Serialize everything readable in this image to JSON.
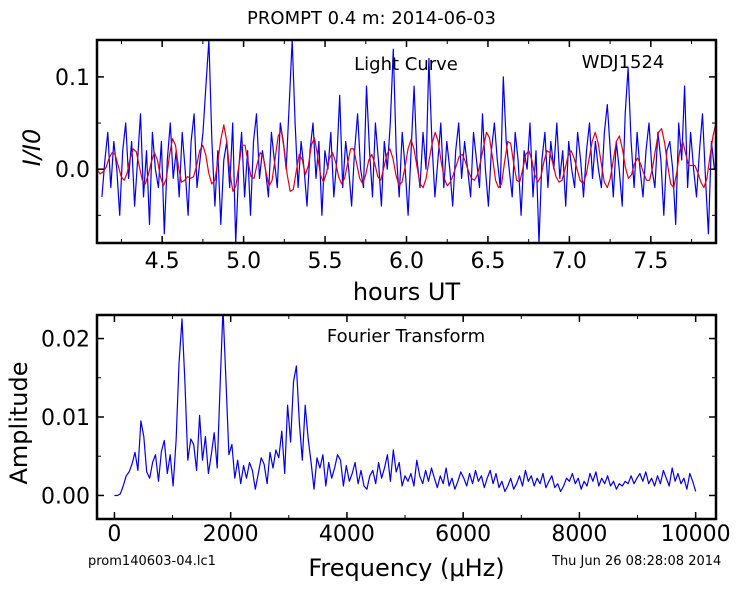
{
  "suptitle": "PROMPT 0.4 m:  2014-06-03",
  "footer": {
    "left": "prom140603-04.lc1",
    "right": "Thu Jun 26 08:28:08 2014"
  },
  "colors": {
    "data": "#0000ee",
    "model": "#e0001a",
    "axes": "#000000"
  },
  "chart_data": [
    {
      "type": "line",
      "title": "Light Curve",
      "annotation": "WDJ1524",
      "xlabel": "hours UT",
      "ylabel": "I/I0",
      "xlim": [
        4.1,
        7.9
      ],
      "ylim": [
        -0.08,
        0.14
      ],
      "xticks": [
        4.5,
        5.0,
        5.5,
        6.0,
        6.5,
        7.0,
        7.5
      ],
      "xtick_labels": [
        "4.5",
        "5.0",
        "5.5",
        "6.0",
        "6.5",
        "7.0",
        "7.5"
      ],
      "yticks": [
        0.1,
        0.0
      ],
      "ytick_labels": [
        "0.1",
        "0.0"
      ],
      "series": [
        {
          "role": "data",
          "color": "#0000ee",
          "x_start": 4.13,
          "x_end": 7.89,
          "values": [
            -0.03,
            0.01,
            0.04,
            -0.02,
            0.03,
            0.0,
            -0.05,
            0.02,
            0.05,
            -0.01,
            0.03,
            -0.04,
            0.01,
            0.06,
            -0.03,
            0.02,
            -0.06,
            0.04,
            0.0,
            -0.02,
            0.03,
            -0.07,
            0.01,
            0.05,
            -0.01,
            0.02,
            -0.03,
            0.04,
            0.0,
            -0.05,
            0.03,
            0.06,
            -0.02,
            0.01,
            0.04,
            0.09,
            0.14,
            0.03,
            -0.04,
            0.02,
            -0.06,
            0.01,
            0.03,
            -0.02,
            0.05,
            -0.08,
            0.0,
            0.04,
            -0.03,
            0.02,
            -0.05,
            0.03,
            0.06,
            -0.01,
            0.02,
            0.0,
            -0.03,
            0.04,
            0.01,
            -0.02,
            0.05,
            0.03,
            0.0,
            0.07,
            0.14,
            0.05,
            -0.02,
            0.03,
            0.0,
            -0.04,
            0.02,
            0.05,
            -0.01,
            0.03,
            -0.05,
            0.02,
            0.0,
            0.04,
            -0.03,
            0.01,
            0.08,
            -0.02,
            0.03,
            0.0,
            -0.04,
            0.02,
            0.06,
            0.0,
            -0.02,
            0.09,
            0.02,
            -0.03,
            0.05,
            0.01,
            -0.04,
            0.03,
            0.0,
            0.05,
            0.13,
            0.02,
            -0.03,
            0.04,
            0.0,
            -0.05,
            0.02,
            0.09,
            0.01,
            -0.02,
            0.04,
            0.0,
            0.12,
            0.03,
            -0.03,
            0.01,
            0.05,
            -0.02,
            0.03,
            0.0,
            -0.04,
            0.02,
            0.05,
            -0.01,
            0.03,
            0.0,
            -0.03,
            0.04,
            0.01,
            -0.02,
            0.06,
            0.0,
            -0.04,
            0.02,
            0.05,
            0.01,
            -0.02,
            0.1,
            0.03,
            0.0,
            -0.03,
            0.04,
            0.01,
            -0.05,
            0.02,
            0.0,
            0.05,
            -0.03,
            0.02,
            -0.08,
            0.01,
            0.04,
            -0.02,
            0.03,
            0.0,
            0.05,
            -0.01,
            0.02,
            -0.04,
            0.03,
            0.0,
            -0.02,
            0.04,
            0.01,
            -0.03,
            0.02,
            0.05,
            -0.01,
            0.03,
            0.0,
            -0.02,
            0.04,
            0.07,
            0.02,
            -0.03,
            0.03,
            0.0,
            -0.04,
            0.06,
            0.11,
            0.03,
            -0.02,
            0.04,
            0.0,
            -0.03,
            0.02,
            0.05,
            0.0,
            -0.02,
            0.04,
            0.01,
            -0.05,
            0.02,
            0.03,
            0.0,
            -0.06,
            0.05,
            0.01,
            0.09,
            -0.02,
            0.04,
            0.0,
            -0.03,
            0.02,
            0.06,
            -0.01,
            -0.07,
            0.03,
            0.0
          ]
        },
        {
          "role": "model",
          "color": "#e0001a",
          "x_start": 4.1,
          "x_end": 7.9,
          "values": [
            0.0,
            -0.005,
            -0.003,
            0.002,
            0.012,
            0.018,
            0.016,
            0.004,
            -0.008,
            -0.012,
            -0.004,
            0.012,
            0.022,
            0.019,
            0.003,
            -0.012,
            -0.016,
            -0.006,
            0.008,
            0.018,
            0.01,
            -0.008,
            -0.018,
            -0.01,
            0.015,
            0.033,
            0.026,
            0.002,
            -0.014,
            -0.012,
            -0.008,
            -0.01,
            -0.008,
            0.004,
            0.02,
            0.026,
            0.016,
            -0.004,
            -0.016,
            -0.012,
            0.008,
            0.032,
            0.048,
            0.03,
            -0.004,
            -0.024,
            -0.018,
            0.004,
            0.026,
            0.026,
            0.008,
            -0.008,
            -0.01,
            0.005,
            0.018,
            0.014,
            -0.004,
            -0.018,
            -0.012,
            0.012,
            0.036,
            0.042,
            0.022,
            -0.006,
            -0.024,
            -0.022,
            -0.002,
            0.016,
            0.01,
            -0.006,
            0.004,
            0.026,
            0.034,
            0.016,
            -0.006,
            -0.014,
            -0.004,
            0.012,
            0.018,
            0.008,
            -0.008,
            -0.016,
            -0.01,
            0.006,
            0.022,
            0.022,
            0.006,
            -0.01,
            -0.016,
            -0.006,
            0.01,
            0.016,
            0.006,
            -0.008,
            -0.012,
            0.002,
            0.016,
            0.022,
            0.012,
            -0.006,
            -0.018,
            -0.014,
            0.002,
            0.022,
            0.032,
            0.022,
            0.002,
            -0.016,
            -0.02,
            -0.01,
            0.01,
            0.028,
            0.04,
            0.03,
            0.008,
            -0.01,
            -0.018,
            -0.014,
            -0.006,
            0.004,
            0.014,
            0.016,
            0.008,
            -0.002,
            -0.01,
            -0.012,
            -0.006,
            0.008,
            0.024,
            0.04,
            0.034,
            0.012,
            -0.012,
            -0.02,
            -0.016,
            0.008,
            0.03,
            0.028,
            0.006,
            -0.012,
            -0.014,
            0.0,
            0.016,
            0.02,
            0.01,
            -0.006,
            -0.014,
            -0.008,
            0.008,
            0.02,
            0.018,
            0.006,
            -0.008,
            -0.014,
            -0.012,
            0.0,
            0.014,
            0.02,
            0.012,
            0.0,
            -0.012,
            -0.016,
            -0.006,
            0.012,
            0.03,
            0.04,
            0.028,
            0.006,
            -0.014,
            -0.02,
            -0.01,
            0.01,
            0.03,
            0.036,
            0.022,
            0.002,
            -0.01,
            -0.006,
            0.006,
            0.012,
            0.006,
            -0.004,
            -0.012,
            -0.012,
            0.002,
            0.022,
            0.04,
            0.044,
            0.028,
            0.004,
            -0.016,
            -0.02,
            -0.004,
            0.02,
            0.03,
            0.016,
            0.004,
            0.004,
            0.004,
            -0.004,
            -0.014,
            -0.02,
            -0.01,
            0.014,
            0.036,
            0.05
          ]
        }
      ]
    },
    {
      "type": "line",
      "title": "Fourier Transform",
      "xlabel": "Frequency (μHz)",
      "ylabel": "Amplitude",
      "xlim": [
        -300,
        10350
      ],
      "ylim": [
        -0.003,
        0.023
      ],
      "xticks": [
        0,
        2000,
        4000,
        6000,
        8000,
        10000
      ],
      "xtick_labels": [
        "0",
        "2000",
        "4000",
        "6000",
        "8000",
        "10000"
      ],
      "yticks": [
        0.02,
        0.01,
        0.0
      ],
      "ytick_labels": [
        "0.02",
        "0.01",
        "0.00"
      ],
      "series": [
        {
          "role": "amplitude",
          "color": "#0000ee",
          "x_start": 0,
          "x_end": 10000,
          "values": [
            0.0,
            0.0,
            0.0002,
            0.0012,
            0.0025,
            0.003,
            0.004,
            0.0055,
            0.0032,
            0.0095,
            0.0075,
            0.003,
            0.0022,
            0.0042,
            0.0052,
            0.0018,
            0.0056,
            0.007,
            0.0028,
            0.0052,
            0.0012,
            0.007,
            0.0168,
            0.0225,
            0.0145,
            0.0045,
            0.0072,
            0.0065,
            0.0032,
            0.0102,
            0.0045,
            0.0075,
            0.0028,
            0.0052,
            0.008,
            0.0035,
            0.014,
            0.0238,
            0.0145,
            0.0052,
            0.0065,
            0.0022,
            0.0045,
            0.0015,
            0.0038,
            0.0022,
            0.0042,
            0.0032,
            0.0008,
            0.0028,
            0.0048,
            0.004,
            0.0015,
            0.0055,
            0.0035,
            0.0058,
            0.0048,
            0.0082,
            0.0028,
            0.0115,
            0.0068,
            0.0145,
            0.0165,
            0.0092,
            0.0045,
            0.0115,
            0.0072,
            0.0042,
            0.0008,
            0.0048,
            0.0035,
            0.0052,
            0.0012,
            0.0042,
            0.0022,
            0.0035,
            0.0052,
            0.0045,
            0.0012,
            0.0038,
            0.0018,
            0.0028,
            0.0042,
            0.0015,
            0.0032,
            0.0012,
            0.0008,
            0.0025,
            0.0032,
            0.0015,
            0.0042,
            0.0022,
            0.0035,
            0.0052,
            0.0018,
            0.0058,
            0.003,
            0.0042,
            0.0012,
            0.0025,
            0.0018,
            0.0028,
            0.0012,
            0.0045,
            0.0025,
            0.0015,
            0.0032,
            0.0018,
            0.0035,
            0.0022,
            0.001,
            0.0025,
            0.0015,
            0.0035,
            0.0012,
            0.0022,
            0.0008,
            0.0018,
            0.003,
            0.0022,
            0.0012,
            0.0028,
            0.0015,
            0.0032,
            0.0018,
            0.0025,
            0.001,
            0.0022,
            0.0032,
            0.0015,
            0.0028,
            0.001,
            0.0018,
            0.0005,
            0.0012,
            0.0022,
            0.0008,
            0.0015,
            0.0025,
            0.0012,
            0.0032,
            0.0018,
            0.0025,
            0.0012,
            0.0022,
            0.0015,
            0.0028,
            0.001,
            0.0018,
            0.0025,
            0.001,
            0.0015,
            0.0005,
            0.0012,
            0.0022,
            0.0018,
            0.0028,
            0.0015,
            0.0022,
            0.0008,
            0.0018,
            0.0012,
            0.0028,
            0.0018,
            0.003,
            0.0012,
            0.0022,
            0.0015,
            0.0025,
            0.0012,
            0.0018,
            0.0008,
            0.0015,
            0.0012,
            0.0018,
            0.0015,
            0.0025,
            0.0015,
            0.0022,
            0.0028,
            0.0018,
            0.003,
            0.0015,
            0.0022,
            0.0012,
            0.0025,
            0.0015,
            0.0032,
            0.0022,
            0.0012,
            0.0035,
            0.0018,
            0.0028,
            0.0015,
            0.0022,
            0.0008,
            0.0028,
            0.0018,
            0.0005
          ]
        }
      ]
    }
  ]
}
